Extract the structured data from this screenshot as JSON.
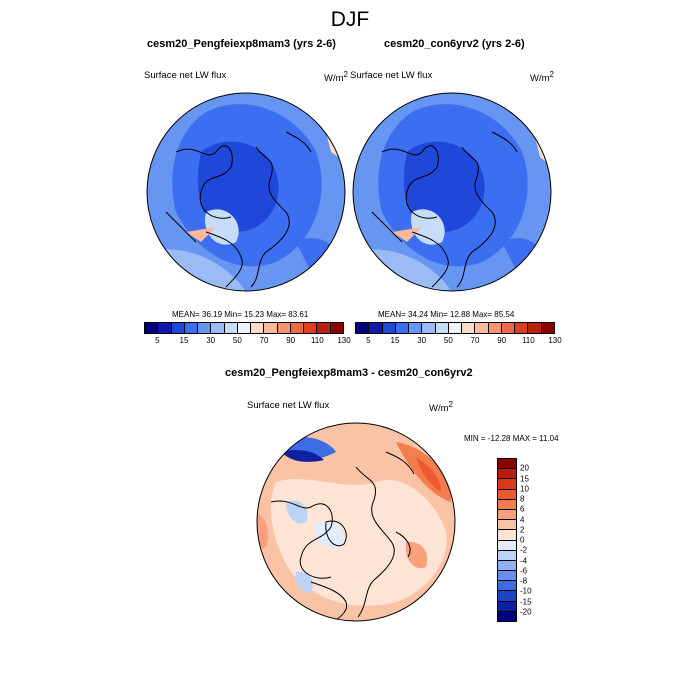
{
  "figure": {
    "title": "DJF",
    "variable": "Surface net LW flux",
    "units_base": "W/m",
    "units_exp": "2"
  },
  "panel1": {
    "title": "cesm20_Pengfeiexp8mam3 (yrs 2-6)",
    "stats": "MEAN=  36.19  Min=  15.23  Max=  83.61"
  },
  "panel2": {
    "title": "cesm20_con6yrv2 (yrs 2-6)",
    "stats": "MEAN=  34.24  Min=  12.88  Max=  85.54"
  },
  "diff": {
    "title": "cesm20_Pengfeiexp8mam3 - cesm20_con6yrv2",
    "stats": "MIN = -12.28 MAX =  11.04"
  },
  "colorbar_top": {
    "labels": [
      "5",
      "15",
      "30",
      "50",
      "70",
      "90",
      "110",
      "130"
    ],
    "colors": [
      "#00007f",
      "#0d1aa8",
      "#1f47d9",
      "#3b6ef0",
      "#6796f2",
      "#9bbbf4",
      "#c6dcf7",
      "#eef3f9",
      "#fbdcc9",
      "#f8b89b",
      "#f59473",
      "#ee6a44",
      "#d9401e",
      "#b8200c",
      "#8b0000"
    ]
  },
  "colorbar_diff": {
    "labels": [
      "20",
      "15",
      "10",
      "8",
      "6",
      "4",
      "2",
      "0",
      "-2",
      "-4",
      "-6",
      "-8",
      "-10",
      "-15",
      "-20"
    ],
    "colors": [
      "#8b0000",
      "#b81e0c",
      "#d9381a",
      "#ee5a2e",
      "#f47d4e",
      "#f8a07a",
      "#fac3a6",
      "#fde4d4",
      "#e2ecfa",
      "#bcd3f7",
      "#90b1f1",
      "#6690ec",
      "#3c6de4",
      "#1c45c8",
      "#0c22a0",
      "#00007f"
    ]
  }
}
